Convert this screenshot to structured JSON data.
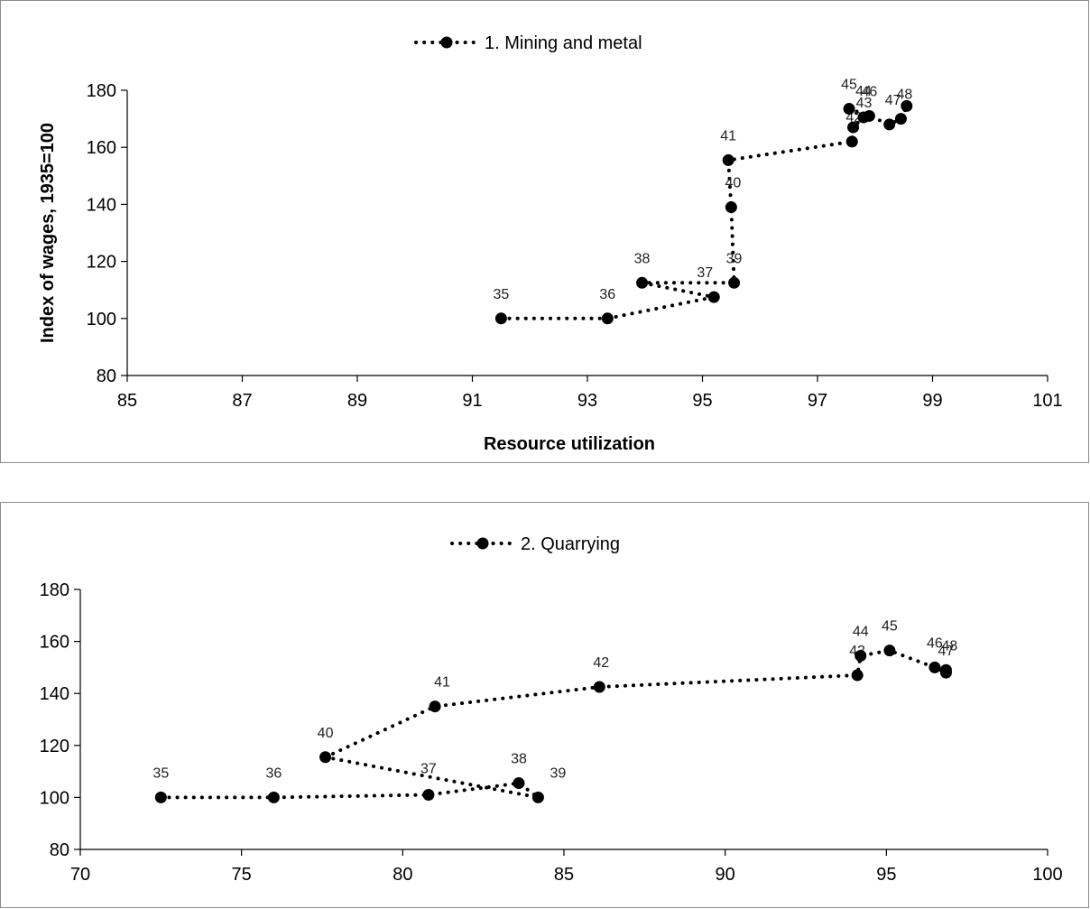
{
  "chart_data": [
    {
      "type": "line",
      "legend": "1. Mining and metal",
      "legend_position": "top-center",
      "xlabel": "Resource utilization",
      "ylabel": "Index of wages, 1935=100",
      "xlim": [
        85,
        101
      ],
      "ylim": [
        80,
        180
      ],
      "xticks": [
        "85",
        "87",
        "89",
        "91",
        "93",
        "95",
        "97",
        "99",
        "101"
      ],
      "yticks": [
        "80",
        "100",
        "120",
        "140",
        "160",
        "180"
      ],
      "series": [
        {
          "points": [
            {
              "label": "35",
              "x": 91.5,
              "y": 100
            },
            {
              "label": "36",
              "x": 93.35,
              "y": 100
            },
            {
              "label": "37",
              "x": 95.2,
              "y": 107.5
            },
            {
              "label": "38",
              "x": 93.95,
              "y": 112.5
            },
            {
              "label": "39",
              "x": 95.55,
              "y": 112.5
            },
            {
              "label": "40",
              "x": 95.5,
              "y": 139
            },
            {
              "label": "41",
              "x": 95.45,
              "y": 155.5
            },
            {
              "label": "42",
              "x": 97.6,
              "y": 162
            },
            {
              "label": "43",
              "x": 97.62,
              "y": 167
            },
            {
              "label": "44",
              "x": 97.8,
              "y": 170.5
            },
            {
              "label": "45",
              "x": 97.55,
              "y": 173.5
            },
            {
              "label": "46",
              "x": 97.9,
              "y": 171
            },
            {
              "label": "47",
              "x": 98.25,
              "y": 168
            },
            {
              "label": "48",
              "x": 98.45,
              "y": 170
            },
            {
              "label": "",
              "x": 98.55,
              "y": 174.5
            }
          ]
        }
      ]
    },
    {
      "type": "line",
      "legend": "2. Quarrying",
      "legend_position": "top-center",
      "xlabel": "",
      "ylabel": "",
      "xlim": [
        70,
        100
      ],
      "ylim": [
        80,
        180
      ],
      "xticks": [
        "70",
        "75",
        "80",
        "85",
        "90",
        "95",
        "100"
      ],
      "yticks": [
        "80",
        "100",
        "120",
        "140",
        "160",
        "180"
      ],
      "series": [
        {
          "points": [
            {
              "label": "35",
              "x": 72.5,
              "y": 100
            },
            {
              "label": "36",
              "x": 76,
              "y": 100
            },
            {
              "label": "37",
              "x": 80.8,
              "y": 101
            },
            {
              "label": "38",
              "x": 83.6,
              "y": 105.5
            },
            {
              "label": "39",
              "x": 84.2,
              "y": 100
            },
            {
              "label": "40",
              "x": 77.6,
              "y": 115.5
            },
            {
              "label": "41",
              "x": 81,
              "y": 135
            },
            {
              "label": "42",
              "x": 86.1,
              "y": 142.5
            },
            {
              "label": "43",
              "x": 94.1,
              "y": 147
            },
            {
              "label": "44",
              "x": 94.2,
              "y": 154.5
            },
            {
              "label": "45",
              "x": 95.1,
              "y": 156.5
            },
            {
              "label": "46",
              "x": 96.5,
              "y": 150
            },
            {
              "label": "47",
              "x": 96.85,
              "y": 148
            },
            {
              "label": "48",
              "x": 96.85,
              "y": 149
            }
          ]
        }
      ]
    }
  ]
}
